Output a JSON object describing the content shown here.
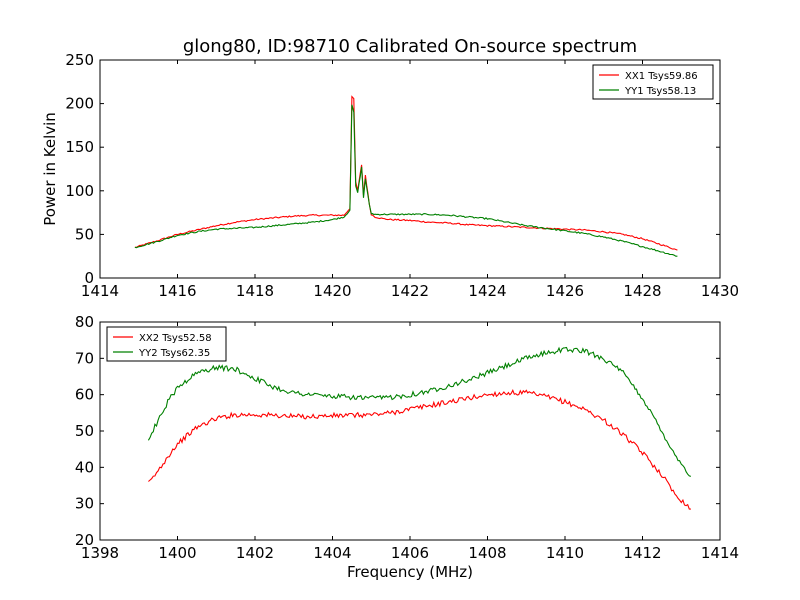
{
  "figure": {
    "title": "glong80, ID:98710 Calibrated On-source spectrum"
  },
  "chart_data": [
    {
      "type": "line",
      "title": "glong80, ID:98710 Calibrated On-source spectrum",
      "xlabel": "",
      "ylabel": "Power in Kelvin",
      "xlim": [
        1414,
        1430
      ],
      "ylim": [
        0,
        250
      ],
      "xticks": [
        "1414",
        "1416",
        "1418",
        "1420",
        "1422",
        "1424",
        "1426",
        "1428",
        "1430"
      ],
      "yticks": [
        "0",
        "50",
        "100",
        "150",
        "200",
        "250"
      ],
      "grid": false,
      "legend_position": "top-right",
      "series": [
        {
          "name": "XX1 Tsys59.86",
          "color": "#ff0000",
          "x": [
            1414.9,
            1415.5,
            1416,
            1416.5,
            1417,
            1417.5,
            1418,
            1418.5,
            1419,
            1419.5,
            1420,
            1420.3,
            1420.45,
            1420.5,
            1420.55,
            1420.6,
            1420.65,
            1420.75,
            1420.8,
            1420.85,
            1420.95,
            1421,
            1421.1,
            1421.3,
            1421.5,
            1422,
            1422.5,
            1423,
            1423.5,
            1424,
            1424.5,
            1425,
            1425.5,
            1426,
            1426.5,
            1427,
            1427.5,
            1428,
            1428.5,
            1428.9
          ],
          "y": [
            35,
            43,
            50,
            55,
            60,
            64,
            67,
            69,
            71,
            72,
            72,
            72,
            80,
            208,
            205,
            110,
            100,
            130,
            95,
            118,
            85,
            73,
            70,
            68,
            67,
            66,
            64,
            63,
            61,
            60,
            59,
            58,
            57,
            56,
            55,
            53,
            50,
            45,
            38,
            32
          ]
        },
        {
          "name": "YY1 Tsys58.13",
          "color": "#008000",
          "x": [
            1414.9,
            1415.5,
            1416,
            1416.5,
            1417,
            1417.5,
            1418,
            1418.5,
            1419,
            1419.5,
            1420,
            1420.3,
            1420.45,
            1420.5,
            1420.55,
            1420.6,
            1420.65,
            1420.75,
            1420.8,
            1420.85,
            1420.95,
            1421,
            1421.1,
            1421.3,
            1421.5,
            1422,
            1422.5,
            1423,
            1423.5,
            1424,
            1424.5,
            1425,
            1425.5,
            1426,
            1426.5,
            1427,
            1427.5,
            1428,
            1428.5,
            1428.9
          ],
          "y": [
            35,
            42,
            49,
            53,
            56,
            57,
            58,
            60,
            62,
            64,
            67,
            70,
            78,
            198,
            190,
            105,
            98,
            127,
            92,
            114,
            84,
            74,
            73,
            73,
            73,
            73,
            73,
            72,
            70,
            68,
            64,
            60,
            57,
            54,
            51,
            47,
            42,
            36,
            30,
            25
          ]
        }
      ]
    },
    {
      "type": "line",
      "title": "",
      "xlabel": "Frequency (MHz)",
      "ylabel": "",
      "xlim": [
        1398,
        1414
      ],
      "ylim": [
        20,
        80
      ],
      "xticks": [
        "1398",
        "1400",
        "1402",
        "1404",
        "1406",
        "1408",
        "1410",
        "1412",
        "1414"
      ],
      "yticks": [
        "20",
        "30",
        "40",
        "50",
        "60",
        "70",
        "80"
      ],
      "grid": false,
      "legend_position": "top-left",
      "series": [
        {
          "name": "XX2 Tsys52.58",
          "color": "#ff0000",
          "x": [
            1399.25,
            1399.5,
            1399.75,
            1400,
            1400.5,
            1401,
            1401.5,
            1402,
            1402.5,
            1403,
            1403.5,
            1404,
            1404.5,
            1405,
            1405.5,
            1406,
            1406.5,
            1407,
            1407.5,
            1408,
            1408.5,
            1409,
            1409.5,
            1410,
            1410.5,
            1411,
            1411.5,
            1412,
            1412.5,
            1412.75,
            1413,
            1413.25
          ],
          "y": [
            35.5,
            39,
            43,
            46.5,
            51,
            53.5,
            54.5,
            54.5,
            54.3,
            54,
            54,
            54.2,
            54.3,
            54.5,
            55,
            56,
            57,
            58,
            59,
            60,
            60.5,
            60.5,
            59.5,
            58,
            56,
            53,
            49,
            44,
            38,
            34,
            31,
            28.5
          ]
        },
        {
          "name": "YY2 Tsys62.35",
          "color": "#008000",
          "x": [
            1399.25,
            1399.5,
            1399.75,
            1400,
            1400.5,
            1401,
            1401.5,
            1402,
            1402.5,
            1403,
            1403.5,
            1404,
            1404.5,
            1405,
            1405.5,
            1406,
            1406.5,
            1407,
            1407.5,
            1408,
            1408.5,
            1409,
            1409.5,
            1410,
            1410.5,
            1411,
            1411.5,
            1412,
            1412.5,
            1412.75,
            1413,
            1413.25
          ],
          "y": [
            47.5,
            53,
            58,
            62,
            66,
            67.5,
            67,
            64.5,
            62,
            60.5,
            60,
            59.5,
            59.3,
            59,
            59.3,
            60,
            61,
            62.5,
            64,
            66,
            68,
            70,
            71.5,
            72.5,
            72,
            70,
            66,
            59,
            50,
            45,
            41,
            37.5
          ]
        }
      ]
    }
  ]
}
